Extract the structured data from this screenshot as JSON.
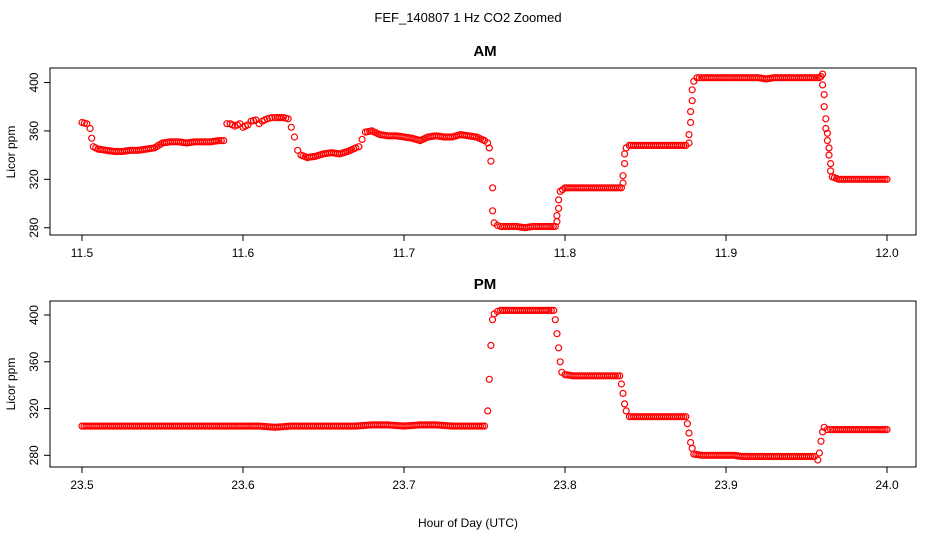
{
  "figure": {
    "title": "FEF_140807  1 Hz CO2 Zoomed",
    "xlabel": "Hour of Day (UTC)",
    "series_color": "#ff0000"
  },
  "chart_data": [
    {
      "type": "scatter",
      "title": "AM",
      "xlabel": "",
      "ylabel": "Licor ppm",
      "xlim": [
        11.5,
        12.0
      ],
      "ylim": [
        274,
        412
      ],
      "xticks": [
        "11.5",
        "11.6",
        "11.7",
        "11.8",
        "11.9",
        "12.0"
      ],
      "xtick_values": [
        11.5,
        11.6,
        11.7,
        11.8,
        11.9,
        12.0
      ],
      "yticks": [
        "280",
        "320",
        "360",
        "400"
      ],
      "ytick_values": [
        280,
        320,
        360,
        400
      ],
      "grid": false,
      "marker": "open-circle",
      "points": [
        [
          11.5,
          367
        ],
        [
          11.503,
          366
        ],
        [
          11.505,
          362
        ],
        [
          11.506,
          354
        ],
        [
          11.507,
          347
        ],
        [
          11.51,
          345
        ],
        [
          11.515,
          344
        ],
        [
          11.52,
          343
        ],
        [
          11.525,
          343
        ],
        [
          11.53,
          344
        ],
        [
          11.535,
          344
        ],
        [
          11.54,
          345
        ],
        [
          11.545,
          346
        ],
        [
          11.55,
          350
        ],
        [
          11.555,
          351
        ],
        [
          11.56,
          351
        ],
        [
          11.565,
          350
        ],
        [
          11.57,
          351
        ],
        [
          11.575,
          351
        ],
        [
          11.58,
          351
        ],
        [
          11.585,
          352
        ],
        [
          11.588,
          352
        ],
        [
          11.59,
          366
        ],
        [
          11.592,
          366
        ],
        [
          11.595,
          364
        ],
        [
          11.598,
          366
        ],
        [
          11.6,
          363
        ],
        [
          11.603,
          365
        ],
        [
          11.605,
          368
        ],
        [
          11.608,
          369
        ],
        [
          11.61,
          366
        ],
        [
          11.612,
          368
        ],
        [
          11.615,
          370
        ],
        [
          11.618,
          371
        ],
        [
          11.62,
          371
        ],
        [
          11.625,
          371
        ],
        [
          11.628,
          370
        ],
        [
          11.63,
          363
        ],
        [
          11.632,
          355
        ],
        [
          11.634,
          344
        ],
        [
          11.636,
          340
        ],
        [
          11.64,
          338
        ],
        [
          11.645,
          339
        ],
        [
          11.65,
          341
        ],
        [
          11.655,
          342
        ],
        [
          11.66,
          341
        ],
        [
          11.665,
          343
        ],
        [
          11.67,
          346
        ],
        [
          11.672,
          347
        ],
        [
          11.674,
          353
        ],
        [
          11.676,
          359
        ],
        [
          11.68,
          360
        ],
        [
          11.685,
          357
        ],
        [
          11.69,
          356
        ],
        [
          11.695,
          356
        ],
        [
          11.7,
          355
        ],
        [
          11.705,
          354
        ],
        [
          11.71,
          352
        ],
        [
          11.715,
          355
        ],
        [
          11.72,
          356
        ],
        [
          11.725,
          355
        ],
        [
          11.73,
          355
        ],
        [
          11.735,
          357
        ],
        [
          11.74,
          356
        ],
        [
          11.745,
          355
        ],
        [
          11.75,
          352
        ],
        [
          11.752,
          350
        ],
        [
          11.753,
          346
        ],
        [
          11.754,
          335
        ],
        [
          11.755,
          313
        ],
        [
          11.755,
          294
        ],
        [
          11.756,
          284
        ],
        [
          11.758,
          282
        ],
        [
          11.76,
          281
        ],
        [
          11.765,
          281
        ],
        [
          11.77,
          281
        ],
        [
          11.775,
          280
        ],
        [
          11.78,
          281
        ],
        [
          11.785,
          281
        ],
        [
          11.79,
          281
        ],
        [
          11.794,
          281
        ],
        [
          11.795,
          285
        ],
        [
          11.795,
          290
        ],
        [
          11.796,
          296
        ],
        [
          11.796,
          303
        ],
        [
          11.797,
          310
        ],
        [
          11.8,
          313
        ],
        [
          11.805,
          313
        ],
        [
          11.81,
          313
        ],
        [
          11.815,
          313
        ],
        [
          11.82,
          313
        ],
        [
          11.825,
          313
        ],
        [
          11.83,
          313
        ],
        [
          11.835,
          313
        ],
        [
          11.836,
          317
        ],
        [
          11.836,
          323
        ],
        [
          11.837,
          333
        ],
        [
          11.837,
          341
        ],
        [
          11.838,
          346
        ],
        [
          11.84,
          348
        ],
        [
          11.845,
          348
        ],
        [
          11.85,
          348
        ],
        [
          11.855,
          348
        ],
        [
          11.86,
          348
        ],
        [
          11.865,
          348
        ],
        [
          11.87,
          348
        ],
        [
          11.875,
          348
        ],
        [
          11.877,
          350
        ],
        [
          11.877,
          357
        ],
        [
          11.878,
          367
        ],
        [
          11.878,
          376
        ],
        [
          11.879,
          385
        ],
        [
          11.879,
          394
        ],
        [
          11.88,
          401
        ],
        [
          11.882,
          404
        ],
        [
          11.885,
          404
        ],
        [
          11.89,
          404
        ],
        [
          11.895,
          404
        ],
        [
          11.9,
          404
        ],
        [
          11.905,
          404
        ],
        [
          11.91,
          404
        ],
        [
          11.915,
          404
        ],
        [
          11.92,
          404
        ],
        [
          11.925,
          403
        ],
        [
          11.93,
          404
        ],
        [
          11.935,
          404
        ],
        [
          11.94,
          404
        ],
        [
          11.945,
          404
        ],
        [
          11.95,
          404
        ],
        [
          11.955,
          404
        ],
        [
          11.958,
          404
        ],
        [
          11.959,
          405
        ],
        [
          11.96,
          407
        ],
        [
          11.96,
          398
        ],
        [
          11.961,
          390
        ],
        [
          11.961,
          380
        ],
        [
          11.962,
          370
        ],
        [
          11.962,
          362
        ],
        [
          11.963,
          358
        ],
        [
          11.963,
          352
        ],
        [
          11.964,
          346
        ],
        [
          11.964,
          340
        ],
        [
          11.965,
          333
        ],
        [
          11.965,
          327
        ],
        [
          11.966,
          322
        ],
        [
          11.97,
          320
        ],
        [
          11.975,
          320
        ],
        [
          11.98,
          320
        ],
        [
          11.985,
          320
        ],
        [
          11.99,
          320
        ],
        [
          11.995,
          320
        ],
        [
          12.0,
          320
        ]
      ]
    },
    {
      "type": "scatter",
      "title": "PM",
      "xlabel": "Hour of Day (UTC)",
      "ylabel": "Licor ppm",
      "xlim": [
        23.5,
        24.0
      ],
      "ylim": [
        270,
        412
      ],
      "xticks": [
        "23.5",
        "23.6",
        "23.7",
        "23.8",
        "23.9",
        "24.0"
      ],
      "xtick_values": [
        23.5,
        23.6,
        23.7,
        23.8,
        23.9,
        24.0
      ],
      "yticks": [
        "280",
        "320",
        "360",
        "400"
      ],
      "ytick_values": [
        280,
        320,
        360,
        400
      ],
      "grid": false,
      "marker": "open-circle",
      "points": [
        [
          23.5,
          305
        ],
        [
          23.51,
          305
        ],
        [
          23.52,
          305
        ],
        [
          23.53,
          305
        ],
        [
          23.54,
          305
        ],
        [
          23.55,
          305
        ],
        [
          23.56,
          305
        ],
        [
          23.57,
          305
        ],
        [
          23.58,
          305
        ],
        [
          23.59,
          305
        ],
        [
          23.6,
          305
        ],
        [
          23.61,
          305
        ],
        [
          23.62,
          304
        ],
        [
          23.63,
          305
        ],
        [
          23.64,
          305
        ],
        [
          23.65,
          305
        ],
        [
          23.66,
          305
        ],
        [
          23.67,
          305
        ],
        [
          23.68,
          306
        ],
        [
          23.69,
          306
        ],
        [
          23.7,
          305
        ],
        [
          23.71,
          306
        ],
        [
          23.72,
          306
        ],
        [
          23.73,
          305
        ],
        [
          23.74,
          305
        ],
        [
          23.75,
          305
        ],
        [
          23.752,
          318
        ],
        [
          23.753,
          345
        ],
        [
          23.754,
          374
        ],
        [
          23.755,
          396
        ],
        [
          23.756,
          401
        ],
        [
          23.758,
          403
        ],
        [
          23.76,
          404
        ],
        [
          23.765,
          404
        ],
        [
          23.77,
          404
        ],
        [
          23.775,
          404
        ],
        [
          23.78,
          404
        ],
        [
          23.785,
          404
        ],
        [
          23.79,
          404
        ],
        [
          23.793,
          404
        ],
        [
          23.794,
          396
        ],
        [
          23.795,
          384
        ],
        [
          23.796,
          372
        ],
        [
          23.797,
          360
        ],
        [
          23.798,
          351
        ],
        [
          23.8,
          349
        ],
        [
          23.805,
          348
        ],
        [
          23.81,
          348
        ],
        [
          23.815,
          348
        ],
        [
          23.82,
          348
        ],
        [
          23.825,
          348
        ],
        [
          23.83,
          348
        ],
        [
          23.834,
          348
        ],
        [
          23.835,
          341
        ],
        [
          23.836,
          333
        ],
        [
          23.837,
          324
        ],
        [
          23.838,
          318
        ],
        [
          23.84,
          313
        ],
        [
          23.845,
          313
        ],
        [
          23.85,
          313
        ],
        [
          23.855,
          313
        ],
        [
          23.86,
          313
        ],
        [
          23.865,
          313
        ],
        [
          23.87,
          313
        ],
        [
          23.875,
          313
        ],
        [
          23.876,
          307
        ],
        [
          23.877,
          299
        ],
        [
          23.878,
          291
        ],
        [
          23.879,
          286
        ],
        [
          23.88,
          281
        ],
        [
          23.885,
          280
        ],
        [
          23.89,
          280
        ],
        [
          23.895,
          280
        ],
        [
          23.9,
          280
        ],
        [
          23.905,
          280
        ],
        [
          23.91,
          279
        ],
        [
          23.915,
          279
        ],
        [
          23.92,
          279
        ],
        [
          23.925,
          279
        ],
        [
          23.93,
          279
        ],
        [
          23.935,
          279
        ],
        [
          23.94,
          279
        ],
        [
          23.945,
          279
        ],
        [
          23.95,
          279
        ],
        [
          23.955,
          279
        ],
        [
          23.957,
          276
        ],
        [
          23.958,
          282
        ],
        [
          23.959,
          292
        ],
        [
          23.96,
          300
        ],
        [
          23.961,
          304
        ],
        [
          23.963,
          302
        ],
        [
          23.965,
          302
        ],
        [
          23.97,
          302
        ],
        [
          23.975,
          302
        ],
        [
          23.98,
          302
        ],
        [
          23.985,
          302
        ],
        [
          23.99,
          302
        ],
        [
          23.995,
          302
        ],
        [
          24.0,
          302
        ]
      ]
    }
  ]
}
